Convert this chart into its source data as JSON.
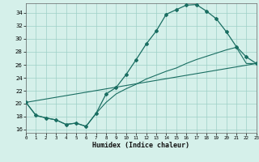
{
  "xlabel": "Humidex (Indice chaleur)",
  "background_color": "#d5f0ea",
  "grid_color": "#9ecfc7",
  "line_color": "#1a6e62",
  "xlim": [
    0,
    23
  ],
  "ylim": [
    15.5,
    35.5
  ],
  "yticks": [
    16,
    18,
    20,
    22,
    24,
    26,
    28,
    30,
    32,
    34
  ],
  "xticks": [
    0,
    1,
    2,
    3,
    4,
    5,
    6,
    7,
    8,
    9,
    10,
    11,
    12,
    13,
    14,
    15,
    16,
    17,
    18,
    19,
    20,
    21,
    22,
    23
  ],
  "curve_main_x": [
    0,
    1,
    2,
    3,
    4,
    5,
    6,
    7,
    8,
    9,
    10,
    11,
    12,
    13,
    14,
    15,
    16,
    17,
    18,
    19,
    20,
    21,
    22,
    23
  ],
  "curve_main_y": [
    20.2,
    18.2,
    17.8,
    17.5,
    16.8,
    17.0,
    16.5,
    18.5,
    21.5,
    22.5,
    24.5,
    26.8,
    29.2,
    31.2,
    33.8,
    34.5,
    35.2,
    35.3,
    34.3,
    33.1,
    31.1,
    28.8,
    27.2,
    26.2
  ],
  "curve_mid_x": [
    0,
    1,
    2,
    3,
    4,
    5,
    6,
    7,
    8,
    9,
    10,
    11,
    12,
    13,
    14,
    15,
    16,
    17,
    18,
    19,
    20,
    21,
    22,
    23
  ],
  "curve_mid_y": [
    20.2,
    18.2,
    17.8,
    17.5,
    16.8,
    17.0,
    16.5,
    18.5,
    20.2,
    21.5,
    22.3,
    23.0,
    23.8,
    24.4,
    25.0,
    25.5,
    26.2,
    26.8,
    27.3,
    27.8,
    28.3,
    28.7,
    26.2,
    26.2
  ],
  "line_x": [
    0,
    23
  ],
  "line_y": [
    20.2,
    26.2
  ]
}
